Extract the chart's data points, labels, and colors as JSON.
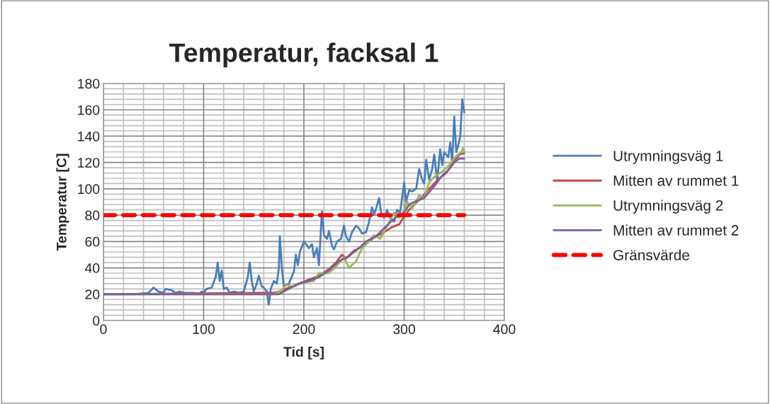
{
  "chart_data": {
    "type": "line",
    "title": "Temperatur, facksal 1",
    "xlabel": "Tid [s]",
    "ylabel": "Temperatur [C]",
    "xlim": [
      0,
      400
    ],
    "xticks": [
      0,
      100,
      200,
      300,
      400
    ],
    "ylim": [
      0,
      180
    ],
    "yticks": [
      0,
      20,
      40,
      60,
      80,
      100,
      120,
      140,
      160,
      180
    ],
    "grid": true,
    "legend": "right",
    "series": [
      {
        "name": "Utrymningsväg 1",
        "color": "#4a7ebb",
        "x": [
          0,
          30,
          45,
          50,
          55,
          60,
          62,
          68,
          72,
          76,
          80,
          90,
          95,
          98,
          100,
          103,
          108,
          112,
          114,
          116,
          118,
          120,
          123,
          126,
          130,
          135,
          140,
          144,
          146,
          148,
          150,
          153,
          155,
          158,
          160,
          163,
          165,
          167,
          170,
          173,
          175,
          176,
          178,
          180,
          185,
          190,
          192,
          194,
          196,
          200,
          203,
          205,
          208,
          210,
          213,
          215,
          218,
          220,
          223,
          225,
          228,
          230,
          233,
          237,
          240,
          242,
          245,
          248,
          252,
          255,
          258,
          262,
          265,
          268,
          270,
          272,
          275,
          277,
          280,
          283,
          286,
          290,
          293,
          296,
          300,
          302,
          305,
          308,
          312,
          315,
          318,
          320,
          322,
          325,
          328,
          330,
          333,
          336,
          338,
          340,
          342,
          344,
          346,
          348,
          350,
          352,
          354,
          356,
          358,
          360
        ],
        "values": [
          20,
          20,
          21,
          25,
          22,
          21,
          24,
          23,
          21,
          22,
          21,
          21,
          20,
          22,
          21,
          24,
          25,
          33,
          44,
          30,
          38,
          24,
          25,
          21,
          22,
          21,
          22,
          33,
          44,
          30,
          22,
          28,
          34,
          26,
          25,
          22,
          12,
          24,
          30,
          28,
          40,
          64,
          40,
          26,
          28,
          37,
          50,
          42,
          52,
          60,
          57,
          55,
          58,
          48,
          55,
          42,
          83,
          65,
          62,
          68,
          57,
          54,
          60,
          62,
          72,
          64,
          60,
          67,
          72,
          70,
          66,
          67,
          75,
          86,
          80,
          85,
          93,
          82,
          78,
          84,
          78,
          75,
          84,
          82,
          105,
          90,
          99,
          98,
          100,
          115,
          107,
          104,
          122,
          107,
          115,
          126,
          106,
          130,
          118,
          128,
          126,
          124,
          135,
          120,
          155,
          128,
          133,
          140,
          168,
          158
        ]
      },
      {
        "name": "Mitten av rummet 1",
        "color": "#be4b48",
        "x": [
          0,
          160,
          170,
          175,
          185,
          195,
          205,
          215,
          225,
          232,
          238,
          242,
          250,
          260,
          270,
          280,
          288,
          295,
          300,
          305,
          310,
          318,
          325,
          335,
          342,
          350,
          355,
          360
        ],
        "values": [
          20,
          21,
          21,
          22,
          25,
          28,
          31,
          34,
          39,
          44,
          50,
          47,
          53,
          57,
          63,
          67,
          71,
          73,
          79,
          84,
          88,
          94,
          100,
          108,
          112,
          121,
          126,
          127
        ]
      },
      {
        "name": "Utrymningsväg 2",
        "color": "#98b954",
        "x": [
          0,
          170,
          178,
          182,
          190,
          200,
          210,
          215,
          225,
          232,
          240,
          245,
          252,
          258,
          265,
          270,
          276,
          282,
          290,
          295,
          298,
          303,
          308,
          315,
          320,
          325,
          330,
          338,
          345,
          352,
          357,
          359,
          360
        ],
        "values": [
          20,
          20,
          23,
          27,
          26,
          29,
          30,
          36,
          36,
          41,
          48,
          40,
          45,
          55,
          60,
          65,
          62,
          70,
          82,
          78,
          80,
          90,
          85,
          95,
          93,
          105,
          109,
          113,
          118,
          125,
          128,
          131,
          128
        ]
      },
      {
        "name": "Mitten av rummet 2",
        "color": "#7d5fa0",
        "x": [
          0,
          175,
          185,
          195,
          205,
          215,
          225,
          235,
          245,
          255,
          262,
          272,
          280,
          288,
          295,
          300,
          305,
          310,
          320,
          330,
          338,
          345,
          350,
          355,
          360
        ],
        "values": [
          20,
          20,
          24,
          28,
          30,
          33,
          38,
          45,
          49,
          55,
          60,
          64,
          70,
          76,
          80,
          82,
          88,
          90,
          93,
          102,
          110,
          115,
          120,
          123,
          123
        ]
      },
      {
        "name": "Gränsvärde",
        "color": "#ff0000",
        "line_style": "dashed",
        "x": [
          0,
          360
        ],
        "values": [
          80,
          80
        ]
      }
    ]
  }
}
